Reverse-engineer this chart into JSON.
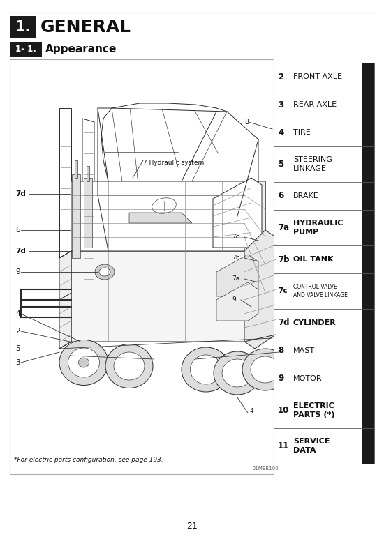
{
  "page_num": "21",
  "top_line_color": "#888888",
  "header1_bg": "#1a1a1a",
  "header1_text": "1.",
  "header1_label": "GENERAL",
  "header2_bg": "#1a1a1a",
  "header2_text": "1- 1.",
  "header2_label": "Appearance",
  "sidebar_items": [
    {
      "num": "2",
      "bold": false,
      "text": "FRONT AXLE",
      "two_line": false,
      "alt": false
    },
    {
      "num": "3",
      "bold": false,
      "text": "REAR AXLE",
      "two_line": false,
      "alt": false
    },
    {
      "num": "4",
      "bold": false,
      "text": "TIRE",
      "two_line": false,
      "alt": false
    },
    {
      "num": "5",
      "bold": false,
      "text": "STEERING\nLINKAGE",
      "two_line": true,
      "alt": false
    },
    {
      "num": "6",
      "bold": false,
      "text": "BRAKE",
      "two_line": false,
      "alt": false
    },
    {
      "num": "7a",
      "bold": true,
      "text": "HYDRAULIC\nPUMP",
      "two_line": true,
      "alt": true
    },
    {
      "num": "7b",
      "bold": true,
      "text": "OIL TANK",
      "two_line": false,
      "alt": false
    },
    {
      "num": "7c",
      "bold": false,
      "text": "CONTROL VALVE\nAND VALVE LINKAGE",
      "two_line": true,
      "small": true,
      "alt": false
    },
    {
      "num": "7d",
      "bold": true,
      "text": "CYLINDER",
      "two_line": false,
      "alt": true
    },
    {
      "num": "8",
      "bold": false,
      "text": "MAST",
      "two_line": false,
      "alt": false
    },
    {
      "num": "9",
      "bold": false,
      "text": "MOTOR",
      "two_line": false,
      "alt": false
    },
    {
      "num": "10",
      "bold": true,
      "text": "ELECTRIC\nPARTS (*)",
      "two_line": true,
      "alt": true
    },
    {
      "num": "11",
      "bold": true,
      "text": "SERVICE\nDATA",
      "two_line": true,
      "alt": true
    }
  ],
  "diagram_note": "*For electric parts configuration, see page 193.",
  "diagram_code": "21M8B100",
  "bg_color": "#ffffff",
  "sidebar_bg_alt": "#1a1a1a",
  "text_color": "#111111",
  "line_color": "#444444"
}
